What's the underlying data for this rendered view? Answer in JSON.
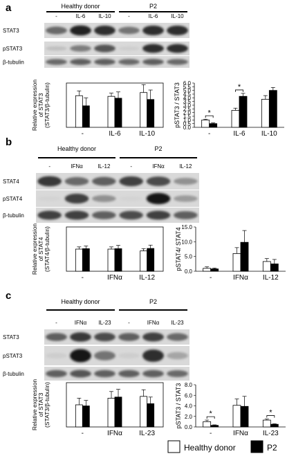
{
  "legend": {
    "healthy": "Healthy donor",
    "patient": "P2"
  },
  "panels": [
    {
      "letter": "a",
      "blot": {
        "groups": [
          "Healthy donor",
          "P2"
        ],
        "lanes": [
          "-",
          "IL-6",
          "IL-10",
          "-",
          "IL-6",
          "IL-10"
        ],
        "rows": [
          "STAT3",
          "pSTAT3",
          "β-tubulin"
        ]
      }
    },
    {
      "letter": "b",
      "blot": {
        "groups": [
          "Healthy donor",
          "P2"
        ],
        "lanes": [
          "-",
          "IFNα",
          "IL-12",
          "-",
          "IFNα",
          "IL-12"
        ],
        "rows": [
          "STAT4",
          "pSTAT4",
          "β-tubulin"
        ]
      }
    },
    {
      "letter": "c",
      "blot": {
        "groups": [
          "Healthy donor",
          "P2"
        ],
        "lanes": [
          "-",
          "IFNα",
          "IL-23",
          "-",
          "IFNα",
          "IL-23"
        ],
        "rows": [
          "STAT3",
          "pSTAT3",
          "β-tubulin"
        ]
      }
    }
  ],
  "chart_data": [
    {
      "panel": "a",
      "type": "bar",
      "ylabel": "Relative expression of STAT3 (STAT3/β-tubulin)",
      "categories": [
        "-",
        "IL-6",
        "IL-10"
      ],
      "ylim": [
        0,
        1.4
      ],
      "yticks": [],
      "series": [
        {
          "name": "Healthy donor",
          "values": [
            1.0,
            0.98,
            1.1
          ],
          "errors": [
            0.15,
            0.1,
            0.25
          ]
        },
        {
          "name": "P2",
          "values": [
            0.68,
            0.92,
            0.88
          ],
          "errors": [
            0.25,
            0.2,
            0.3
          ]
        }
      ],
      "significance": []
    },
    {
      "panel": "a",
      "type": "bar",
      "ylabel": "pSTAT3 / STAT3",
      "categories": [
        "-",
        "IL-6",
        "IL-10"
      ],
      "ylim": [
        0,
        6.0
      ],
      "yticks": [
        "0.0",
        "0.5",
        "1.0",
        "1.5",
        "2.0",
        "2.5",
        "3.0",
        "3.5",
        "4.0",
        "4.5",
        "5.0",
        "5.5",
        "6.0"
      ],
      "series": [
        {
          "name": "Healthy donor",
          "values": [
            1.0,
            2.3,
            3.8
          ],
          "errors": [
            0.1,
            0.3,
            0.5
          ]
        },
        {
          "name": "P2",
          "values": [
            0.5,
            4.2,
            5.0
          ],
          "errors": [
            0.1,
            0.4,
            0.4
          ]
        }
      ],
      "significance": [
        {
          "category": 0,
          "label": "*"
        },
        {
          "category": 1,
          "label": "*"
        }
      ]
    },
    {
      "panel": "b",
      "type": "bar",
      "ylabel": "Relative expression of STAT4 (STAT4/β-tubulin)",
      "categories": [
        "-",
        "IFNα",
        "IL-12"
      ],
      "ylim": [
        0,
        2.0
      ],
      "yticks": [],
      "series": [
        {
          "name": "Healthy donor",
          "values": [
            1.0,
            1.0,
            0.92
          ],
          "errors": [
            0.1,
            0.1,
            0.1
          ]
        },
        {
          "name": "P2",
          "values": [
            1.02,
            1.02,
            1.03
          ],
          "errors": [
            0.12,
            0.15,
            0.15
          ]
        }
      ],
      "significance": []
    },
    {
      "panel": "b",
      "type": "bar",
      "ylabel": "pSTAT4/ STAT4",
      "categories": [
        "-",
        "IFNα",
        "IL-12"
      ],
      "ylim": [
        0,
        15.0
      ],
      "yticks": [
        "0.0",
        "5.0",
        "10.0",
        "15.0"
      ],
      "series": [
        {
          "name": "Healthy donor",
          "values": [
            1.0,
            6.0,
            3.3
          ],
          "errors": [
            0.5,
            2.0,
            1.0
          ]
        },
        {
          "name": "P2",
          "values": [
            0.8,
            9.8,
            2.5
          ],
          "errors": [
            0.3,
            4.0,
            1.5
          ]
        }
      ],
      "significance": []
    },
    {
      "panel": "c",
      "type": "bar",
      "ylabel": "Relative expression of STAT3 (STAT3/β-tubulin)",
      "categories": [
        "-",
        "IFNα",
        "IL-23"
      ],
      "ylim": [
        0,
        2.0
      ],
      "yticks": [],
      "series": [
        {
          "name": "Healthy donor",
          "values": [
            1.0,
            1.3,
            1.38
          ],
          "errors": [
            0.3,
            0.3,
            0.3
          ]
        },
        {
          "name": "P2",
          "values": [
            0.95,
            1.35,
            1.05
          ],
          "errors": [
            0.25,
            0.35,
            0.3
          ]
        }
      ],
      "significance": []
    },
    {
      "panel": "c",
      "type": "bar",
      "ylabel": "pSTAT3 / STAT3",
      "categories": [
        "-",
        "IFNα",
        "IL-23"
      ],
      "ylim": [
        0,
        8.0
      ],
      "yticks": [
        "0.0",
        "2.0",
        "4.0",
        "6.0",
        "8.0"
      ],
      "series": [
        {
          "name": "Healthy donor",
          "values": [
            1.0,
            4.1,
            1.3
          ],
          "errors": [
            0.3,
            1.2,
            0.2
          ]
        },
        {
          "name": "P2",
          "values": [
            0.3,
            3.9,
            0.5
          ],
          "errors": [
            0.1,
            1.9,
            0.1
          ]
        }
      ],
      "significance": [
        {
          "category": 0,
          "label": "*"
        },
        {
          "category": 2,
          "label": "*"
        }
      ]
    }
  ]
}
